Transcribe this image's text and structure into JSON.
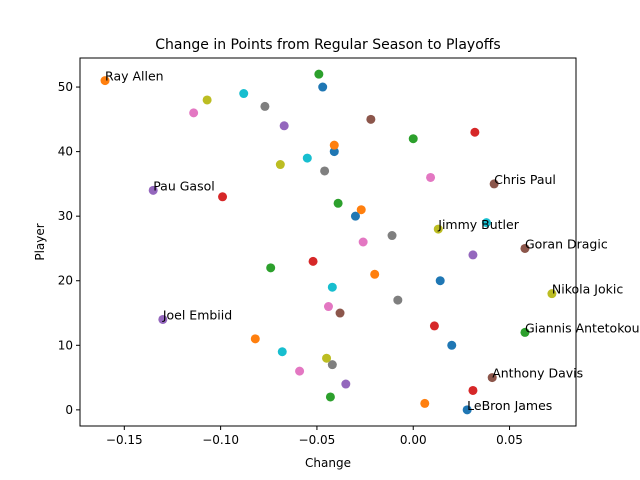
{
  "chart_data": {
    "type": "scatter",
    "title": "Change in Points from Regular Season to Playoffs",
    "xlabel": "Change",
    "ylabel": "Player",
    "xlim": [
      -0.173,
      0.0845
    ],
    "ylim": [
      -2.5,
      54.5
    ],
    "xticks": [
      -0.15,
      -0.1,
      -0.05,
      0.0,
      0.05
    ],
    "xtick_labels": [
      "−0.15",
      "−0.10",
      "−0.05",
      "0.00",
      "0.05"
    ],
    "yticks": [
      0,
      10,
      20,
      30,
      40,
      50
    ],
    "ytick_labels": [
      "0",
      "10",
      "20",
      "30",
      "40",
      "50"
    ],
    "grid": false,
    "legend": "none",
    "colors": [
      "#1f77b4",
      "#ff7f0e",
      "#2ca02c",
      "#d62728",
      "#9467bd",
      "#8c564b",
      "#e377c2",
      "#7f7f7f",
      "#bcbd22",
      "#17becf"
    ],
    "points": [
      {
        "y": 0,
        "x": 0.028,
        "label": "LeBron James"
      },
      {
        "y": 1,
        "x": 0.006,
        "label": ""
      },
      {
        "y": 2,
        "x": -0.043,
        "label": ""
      },
      {
        "y": 3,
        "x": 0.031,
        "label": ""
      },
      {
        "y": 4,
        "x": -0.035,
        "label": ""
      },
      {
        "y": 5,
        "x": 0.041,
        "label": "Anthony Davis"
      },
      {
        "y": 6,
        "x": -0.059,
        "label": ""
      },
      {
        "y": 7,
        "x": -0.042,
        "label": ""
      },
      {
        "y": 8,
        "x": -0.045,
        "label": ""
      },
      {
        "y": 9,
        "x": -0.068,
        "label": ""
      },
      {
        "y": 10,
        "x": 0.02,
        "label": ""
      },
      {
        "y": 11,
        "x": -0.082,
        "label": ""
      },
      {
        "y": 12,
        "x": 0.058,
        "label": "Giannis Antetokounmpo"
      },
      {
        "y": 13,
        "x": 0.011,
        "label": ""
      },
      {
        "y": 14,
        "x": -0.13,
        "label": "Joel Embiid"
      },
      {
        "y": 15,
        "x": -0.038,
        "label": ""
      },
      {
        "y": 16,
        "x": -0.044,
        "label": ""
      },
      {
        "y": 17,
        "x": -0.008,
        "label": ""
      },
      {
        "y": 18,
        "x": 0.072,
        "label": "Nikola Jokic"
      },
      {
        "y": 19,
        "x": -0.042,
        "label": ""
      },
      {
        "y": 20,
        "x": 0.014,
        "label": ""
      },
      {
        "y": 21,
        "x": -0.02,
        "label": ""
      },
      {
        "y": 22,
        "x": -0.074,
        "label": ""
      },
      {
        "y": 23,
        "x": -0.052,
        "label": ""
      },
      {
        "y": 24,
        "x": 0.031,
        "label": ""
      },
      {
        "y": 25,
        "x": 0.058,
        "label": "Goran Dragic"
      },
      {
        "y": 26,
        "x": -0.026,
        "label": ""
      },
      {
        "y": 27,
        "x": -0.011,
        "label": ""
      },
      {
        "y": 28,
        "x": 0.013,
        "label": "Jimmy Butler"
      },
      {
        "y": 29,
        "x": 0.038,
        "label": ""
      },
      {
        "y": 30,
        "x": -0.03,
        "label": ""
      },
      {
        "y": 31,
        "x": -0.027,
        "label": ""
      },
      {
        "y": 32,
        "x": -0.039,
        "label": ""
      },
      {
        "y": 33,
        "x": -0.099,
        "label": ""
      },
      {
        "y": 34,
        "x": -0.135,
        "label": "Pau Gasol"
      },
      {
        "y": 35,
        "x": 0.042,
        "label": "Chris Paul"
      },
      {
        "y": 36,
        "x": 0.009,
        "label": ""
      },
      {
        "y": 37,
        "x": -0.046,
        "label": ""
      },
      {
        "y": 38,
        "x": -0.069,
        "label": ""
      },
      {
        "y": 39,
        "x": -0.055,
        "label": ""
      },
      {
        "y": 40,
        "x": -0.041,
        "label": ""
      },
      {
        "y": 41,
        "x": -0.041,
        "label": ""
      },
      {
        "y": 42,
        "x": 0.0,
        "label": ""
      },
      {
        "y": 43,
        "x": 0.032,
        "label": ""
      },
      {
        "y": 44,
        "x": -0.067,
        "label": ""
      },
      {
        "y": 45,
        "x": -0.022,
        "label": ""
      },
      {
        "y": 46,
        "x": -0.114,
        "label": ""
      },
      {
        "y": 47,
        "x": -0.077,
        "label": ""
      },
      {
        "y": 48,
        "x": -0.107,
        "label": ""
      },
      {
        "y": 49,
        "x": -0.088,
        "label": ""
      },
      {
        "y": 50,
        "x": -0.047,
        "label": ""
      },
      {
        "y": 51,
        "x": -0.16,
        "label": "Ray Allen"
      },
      {
        "y": 52,
        "x": -0.049,
        "label": ""
      }
    ]
  }
}
